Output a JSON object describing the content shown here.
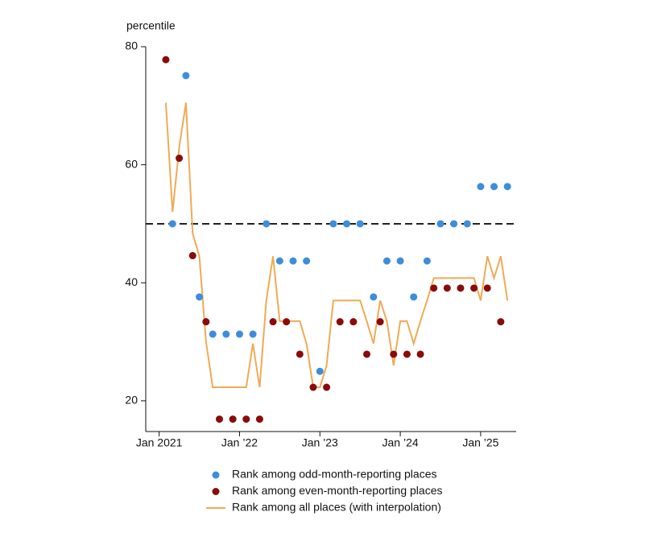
{
  "chart_data": {
    "type": "scatter",
    "y_label": "percentile",
    "xlim": [
      -2,
      53.3
    ],
    "ylim": [
      14.8,
      80
    ],
    "xticks": [
      {
        "value": 0,
        "label": "Jan 2021"
      },
      {
        "value": 12,
        "label": "Jan ’22"
      },
      {
        "value": 24,
        "label": "Jan ’23"
      },
      {
        "value": 36,
        "label": "Jan ’24"
      },
      {
        "value": 48,
        "label": "Jan ’25"
      }
    ],
    "yticks": [
      20,
      40,
      60,
      80
    ],
    "reference_line": {
      "value": 50,
      "color": "#222222",
      "dashed": true
    },
    "series": [
      {
        "name": "Rank among odd-month-reporting places",
        "type": "scatter",
        "color": "#3d8ddd",
        "x": [
          2,
          4,
          6,
          8,
          10,
          12,
          14,
          16,
          18,
          20,
          22,
          24,
          26,
          28,
          30,
          32,
          34,
          36,
          38,
          40,
          42,
          44,
          46,
          48,
          50,
          52
        ],
        "values": [
          50,
          75.1,
          37.6,
          31.3,
          31.3,
          31.3,
          31.3,
          50,
          43.7,
          43.7,
          43.7,
          25,
          50,
          50,
          50,
          37.6,
          43.7,
          43.7,
          37.6,
          43.7,
          50,
          50,
          50,
          56.3,
          56.3,
          56.3
        ]
      },
      {
        "name": "Rank among even-month-reporting places",
        "type": "scatter",
        "color": "#8b0a0a",
        "x": [
          1,
          3,
          5,
          7,
          9,
          11,
          13,
          15,
          17,
          19,
          21,
          23,
          25,
          27,
          29,
          31,
          33,
          35,
          37,
          39,
          41,
          43,
          45,
          47,
          49,
          51
        ],
        "values": [
          77.8,
          61.1,
          44.6,
          33.4,
          16.9,
          16.9,
          16.9,
          16.9,
          33.4,
          33.4,
          27.9,
          22.3,
          22.3,
          33.4,
          33.4,
          27.9,
          33.4,
          27.9,
          27.9,
          27.9,
          39.1,
          39.1,
          39.1,
          39.1,
          39.1,
          33.4
        ]
      },
      {
        "name": "Rank among all places (with interpolation)",
        "type": "line",
        "color": "#f0aa55",
        "x": [
          1,
          2,
          3,
          4,
          5,
          6,
          7,
          8,
          9,
          10,
          11,
          12,
          13,
          14,
          15,
          16,
          17,
          18,
          19,
          20,
          21,
          22,
          23,
          24,
          25,
          26,
          27,
          28,
          29,
          30,
          31,
          32,
          33,
          34,
          35,
          36,
          37,
          38,
          39,
          40,
          41,
          42,
          43,
          44,
          45,
          46,
          47,
          48,
          49,
          50,
          51,
          52
        ],
        "values": [
          70.5,
          52,
          63,
          70.5,
          48.4,
          44.5,
          30,
          22.3,
          22.3,
          22.3,
          22.3,
          22.3,
          22.3,
          29.7,
          22.3,
          37,
          44.5,
          33.5,
          33.5,
          33.5,
          33.5,
          29.7,
          22.3,
          22.3,
          26,
          37,
          37,
          37,
          37,
          37,
          33.5,
          29.7,
          37,
          33.5,
          26,
          33.5,
          33.5,
          29.7,
          33.5,
          37,
          40.8,
          40.8,
          40.8,
          40.8,
          40.8,
          40.8,
          40.8,
          37,
          44.5,
          40.8,
          44.5,
          37
        ]
      }
    ]
  }
}
